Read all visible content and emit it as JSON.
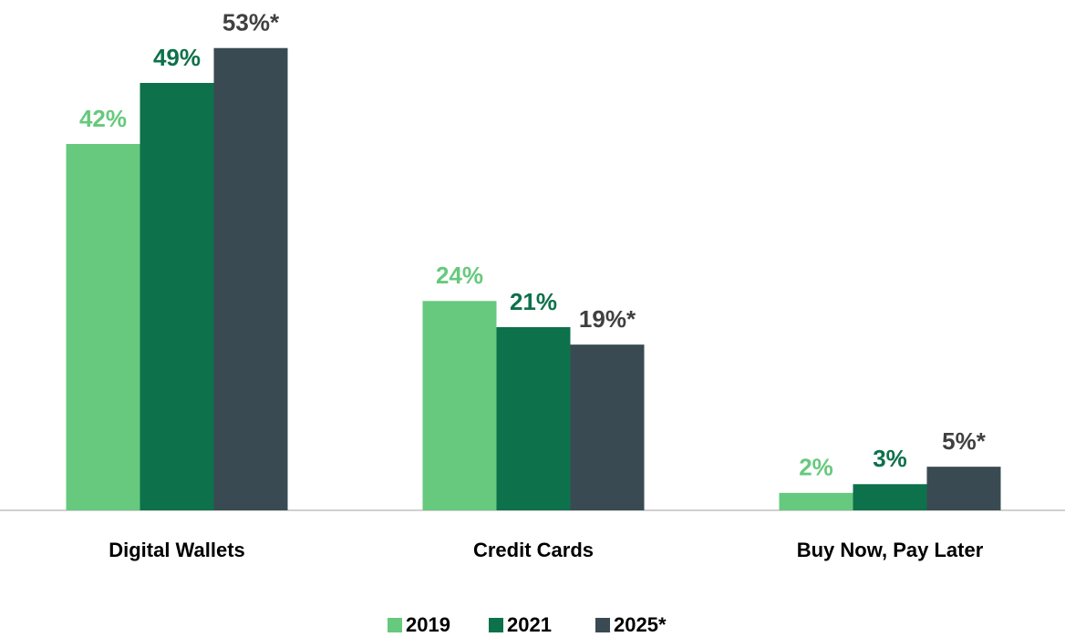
{
  "chart_data": {
    "type": "bar",
    "categories": [
      "Digital Wallets",
      "Credit Cards",
      "Buy Now, Pay Later"
    ],
    "series": [
      {
        "name": "2019",
        "color": "#66c97d",
        "values": [
          42,
          24,
          2
        ],
        "value_labels": [
          "42%",
          "24%",
          "2%"
        ]
      },
      {
        "name": "2021",
        "color": "#0d714b",
        "values": [
          49,
          21,
          3
        ],
        "value_labels": [
          "49%",
          "21%",
          "3%"
        ]
      },
      {
        "name": "2025*",
        "color": "#3a4a52",
        "values": [
          53,
          19,
          5
        ],
        "value_labels": [
          "53%*",
          "19%*",
          "5%*"
        ]
      }
    ],
    "ylim": [
      0,
      56
    ]
  }
}
